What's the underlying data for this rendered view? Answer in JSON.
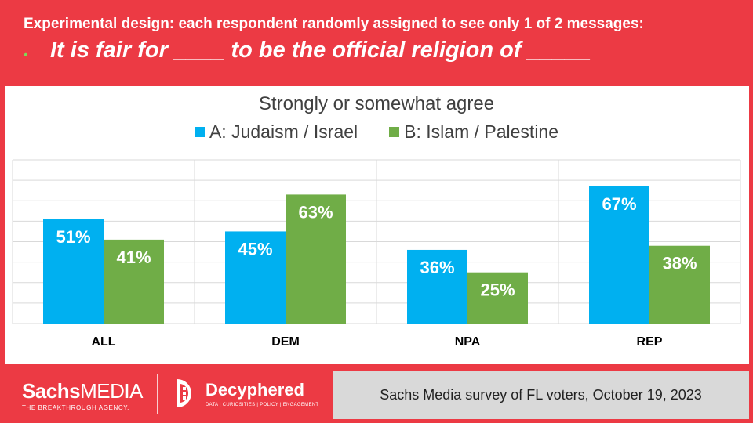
{
  "header": {
    "subtitle": "Experimental design: each respondent randomly assigned to see only 1 of 2 messages:",
    "bullet": "•",
    "headline": "It is fair for ____ to be the official religion of  _____"
  },
  "chart_data": {
    "type": "bar",
    "title": "Strongly or somewhat agree",
    "categories": [
      "ALL",
      "DEM",
      "NPA",
      "REP"
    ],
    "series": [
      {
        "name": "A: Judaism / Israel",
        "values": [
          51,
          45,
          36,
          67
        ],
        "labels": [
          "51%",
          "45%",
          "36%",
          "67%"
        ],
        "color": "#00b0f0"
      },
      {
        "name": "B: Islam / Palestine",
        "values": [
          41,
          63,
          25,
          38
        ],
        "labels": [
          "41%",
          "63%",
          "25%",
          "38%"
        ],
        "color": "#70ad47"
      }
    ],
    "ylim": [
      0,
      80
    ],
    "grid": true,
    "legend": "top"
  },
  "footer": {
    "sachs_bold": "Sachs",
    "sachs_regular": "MEDIA",
    "sachs_tagline": "THE BREAKTHROUGH AGENCY.",
    "decyphered_name": "Decyphered",
    "decyphered_tagline": "DATA | CURIOSITIES | POLICY | ENGAGEMENT",
    "source": "Sachs Media survey of FL voters, October 19, 2023"
  },
  "colors": {
    "background": "#ec3a44",
    "panel": "#ffffff",
    "gridline": "#d9d9d9",
    "source_box": "#d9d9d9"
  }
}
